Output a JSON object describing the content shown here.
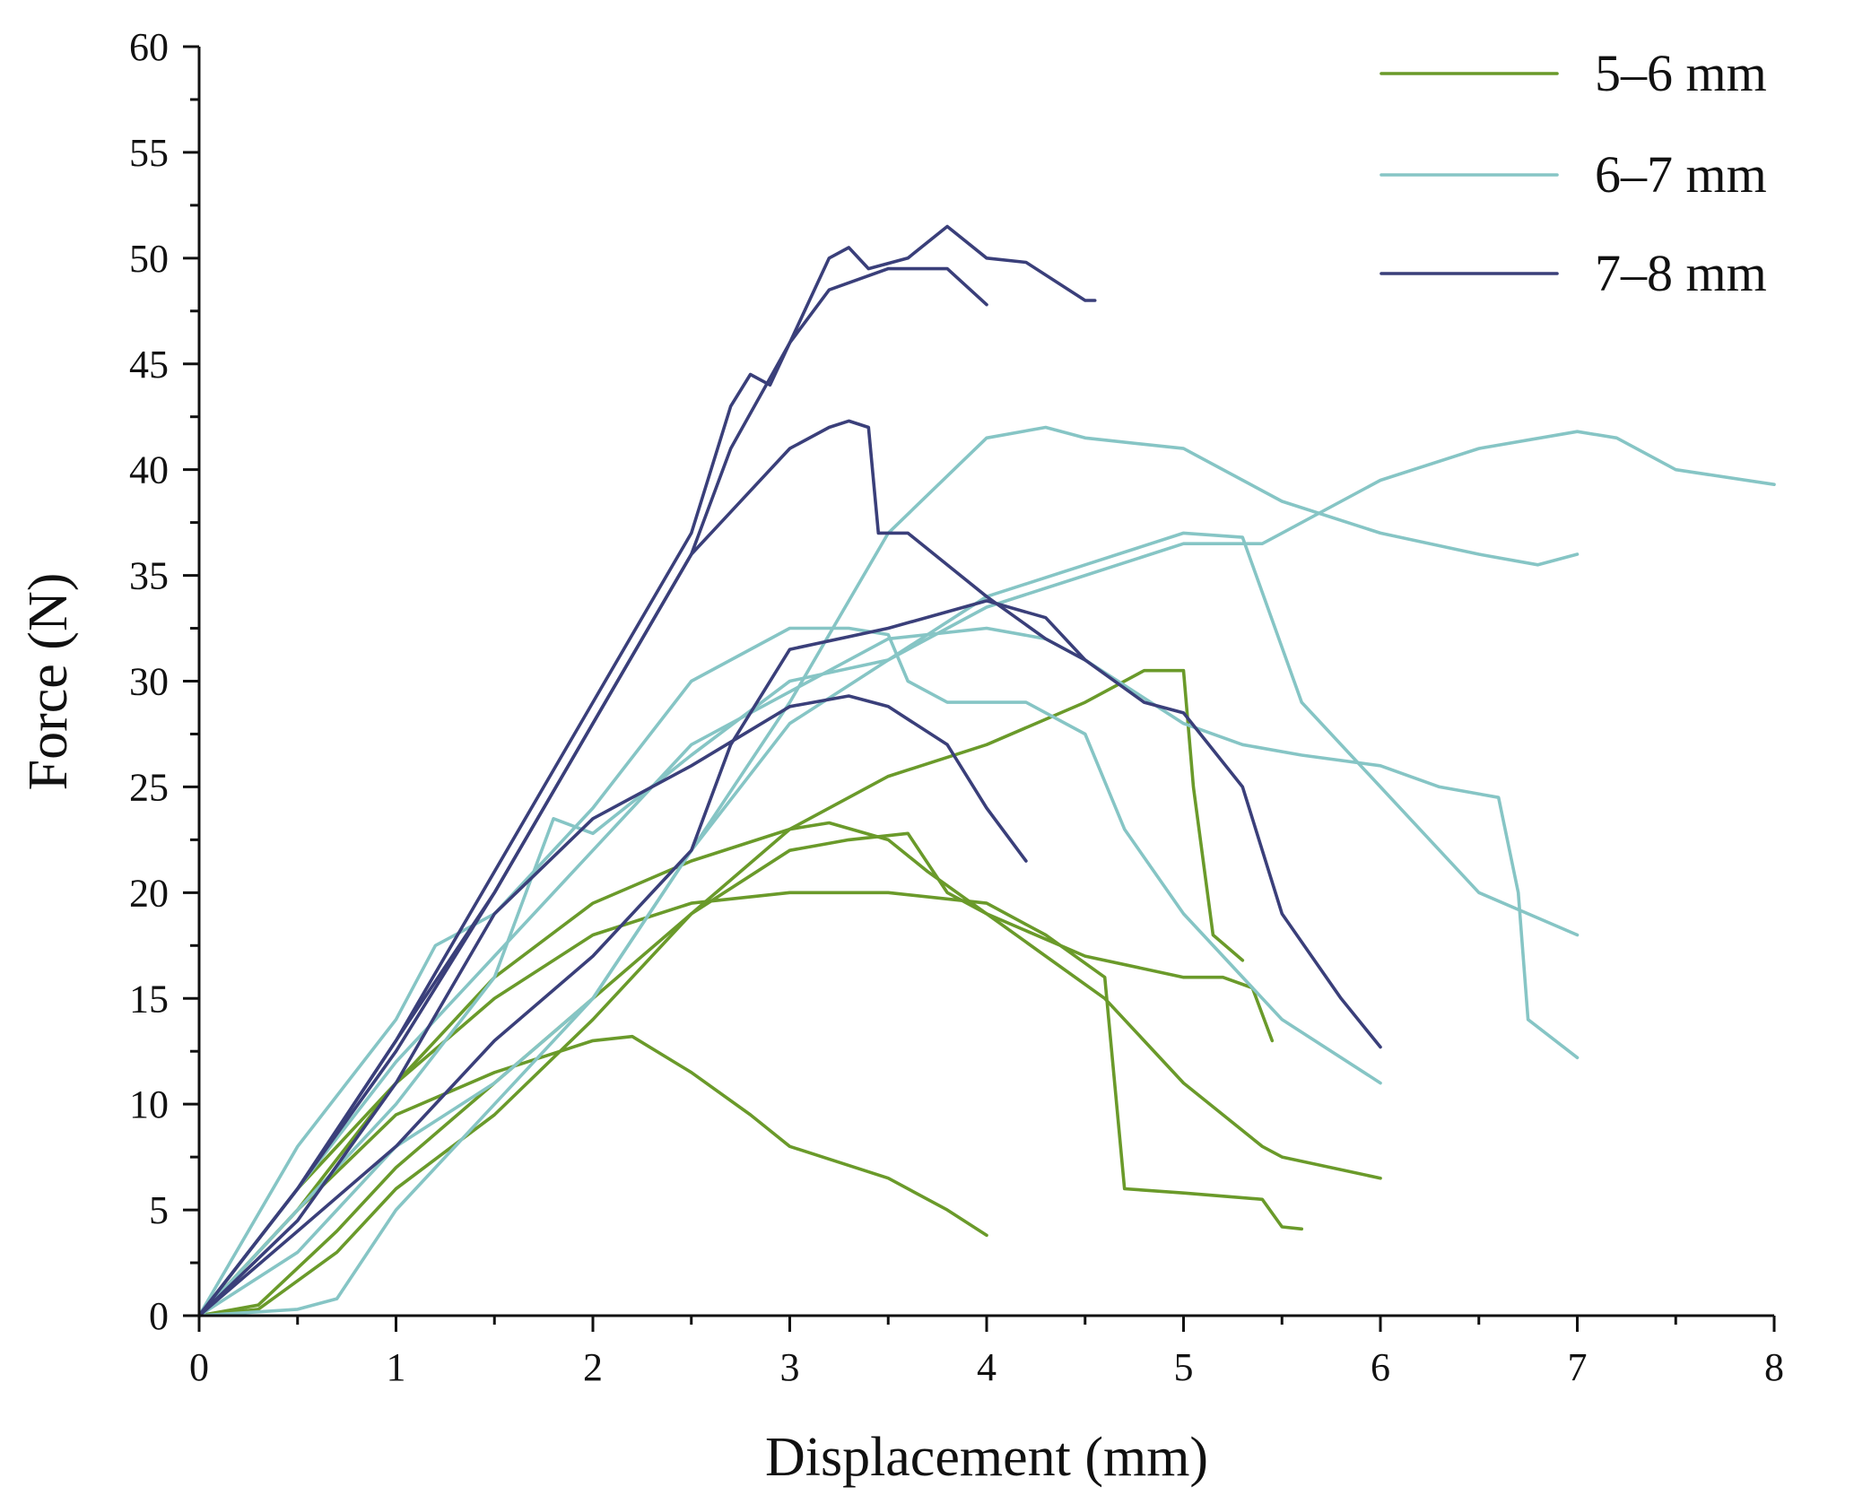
{
  "chart_data": {
    "type": "line",
    "title": "",
    "xlabel": "Displacement (mm)",
    "ylabel": "Force (N)",
    "xlim": [
      0,
      8
    ],
    "ylim": [
      0,
      60
    ],
    "xticks": [
      0,
      1,
      2,
      3,
      4,
      5,
      6,
      7,
      8
    ],
    "yticks": [
      0,
      5,
      10,
      15,
      20,
      25,
      30,
      35,
      40,
      45,
      50,
      55,
      60
    ],
    "xtick_labels": [
      "0",
      "1",
      "2",
      "3",
      "4",
      "5",
      "6",
      "7",
      "8"
    ],
    "ytick_labels": [
      "0",
      "5",
      "10",
      "15",
      "20",
      "25",
      "30",
      "35",
      "40",
      "45",
      "50",
      "55",
      "60"
    ],
    "grid": false,
    "legend_position": "top-right",
    "groups": [
      {
        "name": "5–6 mm",
        "color": "#6a9a2a"
      },
      {
        "name": "6–7 mm",
        "color": "#86c5c5"
      },
      {
        "name": "7–8 mm",
        "color": "#3a3f7a"
      }
    ],
    "series": [
      {
        "group": 0,
        "x": [
          0,
          0.5,
          1.0,
          1.5,
          2.0,
          2.2,
          2.5,
          2.8,
          3.0,
          3.5,
          3.8,
          4.0
        ],
        "y": [
          0,
          5,
          9.5,
          11.5,
          13,
          13.2,
          11.5,
          9.5,
          8,
          6.5,
          5,
          3.8
        ]
      },
      {
        "group": 0,
        "x": [
          0,
          0.5,
          1.0,
          1.5,
          2.0,
          2.5,
          3.0,
          3.2,
          3.5,
          3.7,
          4.0,
          4.3,
          4.6,
          5.0,
          5.4,
          5.5,
          6.0
        ],
        "y": [
          0,
          6,
          11,
          16,
          19.5,
          21.5,
          23,
          23.3,
          22.5,
          21,
          19,
          17,
          15,
          11,
          8,
          7.5,
          6.5
        ]
      },
      {
        "group": 0,
        "x": [
          0,
          0.5,
          1.0,
          1.5,
          2.0,
          2.5,
          3.0,
          3.3,
          3.5,
          4.0,
          4.3,
          4.6,
          4.65,
          4.7,
          5.0,
          5.4,
          5.5,
          5.6
        ],
        "y": [
          0,
          5,
          11,
          15,
          18,
          19.5,
          20,
          20,
          20,
          19.5,
          18,
          16,
          11,
          6,
          5.8,
          5.5,
          4.2,
          4.1
        ]
      },
      {
        "group": 0,
        "x": [
          0,
          0.3,
          0.7,
          1.0,
          1.5,
          2.0,
          2.5,
          3.0,
          3.3,
          3.6,
          3.8,
          4.0,
          4.5,
          5.0,
          5.2,
          5.35,
          5.45
        ],
        "y": [
          0,
          0.5,
          4,
          7,
          11,
          15,
          19,
          22,
          22.5,
          22.8,
          20,
          19,
          17,
          16,
          16,
          15.5,
          13
        ]
      },
      {
        "group": 0,
        "x": [
          0,
          0.3,
          0.7,
          1.0,
          1.5,
          2.0,
          2.5,
          3.0,
          3.5,
          4.0,
          4.5,
          4.8,
          5.0,
          5.05,
          5.15,
          5.3
        ],
        "y": [
          0,
          0.3,
          3,
          6,
          9.5,
          14,
          19,
          23,
          25.5,
          27,
          29,
          30.5,
          30.5,
          25,
          18,
          16.8
        ]
      },
      {
        "group": 1,
        "x": [
          0,
          0.5,
          1.0,
          1.2,
          1.5,
          2.0,
          2.5,
          3.0,
          3.3,
          3.5,
          3.6,
          3.8,
          4.2,
          4.5,
          4.7,
          5.0,
          5.5,
          6.0
        ],
        "y": [
          0,
          8,
          14,
          17.5,
          19,
          24,
          30,
          32.5,
          32.5,
          32.2,
          30,
          29,
          29,
          27.5,
          23,
          19,
          14,
          11
        ]
      },
      {
        "group": 1,
        "x": [
          0,
          0.5,
          1.0,
          1.5,
          2.0,
          2.5,
          3.0,
          3.5,
          4.0,
          4.3,
          4.5,
          5.0,
          5.3,
          5.6,
          6.0,
          6.3,
          6.6,
          6.7,
          6.75,
          7.0
        ],
        "y": [
          0,
          6,
          12,
          17,
          22,
          27,
          29.5,
          32,
          32.5,
          32,
          31,
          28,
          27,
          26.5,
          26,
          25,
          24.5,
          20,
          14,
          12.2
        ]
      },
      {
        "group": 1,
        "x": [
          0,
          0.5,
          1.0,
          1.5,
          1.8,
          2.0,
          2.5,
          3.0,
          3.5,
          4.0,
          4.5,
          5.0,
          5.3,
          5.6,
          6.0,
          6.5,
          7.0
        ],
        "y": [
          0,
          5,
          10,
          16,
          23.5,
          22.8,
          26.5,
          30,
          31,
          34,
          35.5,
          37,
          36.8,
          29,
          25,
          20,
          18
        ]
      },
      {
        "group": 1,
        "x": [
          0,
          0.5,
          0.7,
          1.0,
          1.5,
          2.0,
          2.5,
          3.0,
          3.5,
          4.0,
          4.3,
          4.5,
          5.0,
          5.5,
          6.0,
          6.5,
          6.8,
          7.0
        ],
        "y": [
          0,
          0.3,
          0.8,
          5,
          10,
          15,
          22,
          29,
          37,
          41.5,
          42,
          41.5,
          41,
          38.5,
          37,
          36,
          35.5,
          36
        ]
      },
      {
        "group": 1,
        "x": [
          0,
          0.5,
          1.0,
          1.5,
          2.0,
          2.5,
          3.0,
          3.5,
          4.0,
          4.5,
          5.0,
          5.4,
          5.5,
          6.0,
          6.5,
          7.0,
          7.2,
          7.5,
          8.0
        ],
        "y": [
          0,
          3,
          8,
          11,
          15,
          22,
          28,
          31,
          33.5,
          35,
          36.5,
          36.5,
          37,
          39.5,
          41,
          41.8,
          41.5,
          40,
          39.3
        ]
      },
      {
        "group": 2,
        "x": [
          0,
          0.5,
          1.0,
          1.5,
          2.0,
          2.5,
          2.7,
          2.8,
          2.9,
          3.0,
          3.2,
          3.5,
          3.8,
          4.0
        ],
        "y": [
          0,
          6,
          13,
          21,
          29,
          37,
          43,
          44.5,
          44,
          46,
          48.5,
          49.5,
          49.5,
          47.8
        ]
      },
      {
        "group": 2,
        "x": [
          0,
          0.5,
          1.0,
          1.5,
          2.0,
          2.5,
          2.7,
          3.0,
          3.2,
          3.3,
          3.4,
          3.6,
          3.8,
          4.0,
          4.2,
          4.5,
          4.55
        ],
        "y": [
          0,
          6,
          12.5,
          20,
          28,
          36,
          41,
          46,
          50,
          50.5,
          49.5,
          50,
          51.5,
          50,
          49.8,
          48,
          48
        ]
      },
      {
        "group": 2,
        "x": [
          0,
          0.5,
          1.0,
          1.5,
          2.0,
          2.5,
          2.7,
          3.0,
          3.2,
          3.3,
          3.4,
          3.45,
          3.6,
          4.0,
          4.3,
          4.5
        ],
        "y": [
          0,
          6,
          13,
          20,
          28,
          36,
          38,
          41,
          42,
          42.3,
          42,
          37,
          37,
          34,
          32,
          31
        ]
      },
      {
        "group": 2,
        "x": [
          0,
          0.5,
          1.0,
          1.5,
          2.0,
          2.5,
          2.7,
          3.0,
          3.5,
          4.0,
          4.3,
          4.5,
          4.8,
          5.0,
          5.3,
          5.5,
          5.8,
          6.0
        ],
        "y": [
          0,
          4,
          8,
          13,
          17,
          22,
          27,
          31.5,
          32.5,
          33.8,
          33,
          31,
          29,
          28.5,
          25,
          19,
          15,
          12.7
        ]
      },
      {
        "group": 2,
        "x": [
          0,
          0.5,
          1.0,
          1.5,
          2.0,
          2.5,
          3.0,
          3.3,
          3.5,
          3.8,
          4.0,
          4.2
        ],
        "y": [
          0,
          4.5,
          11,
          19,
          23.5,
          26,
          28.8,
          29.3,
          28.8,
          27,
          24,
          21.5
        ]
      }
    ]
  }
}
